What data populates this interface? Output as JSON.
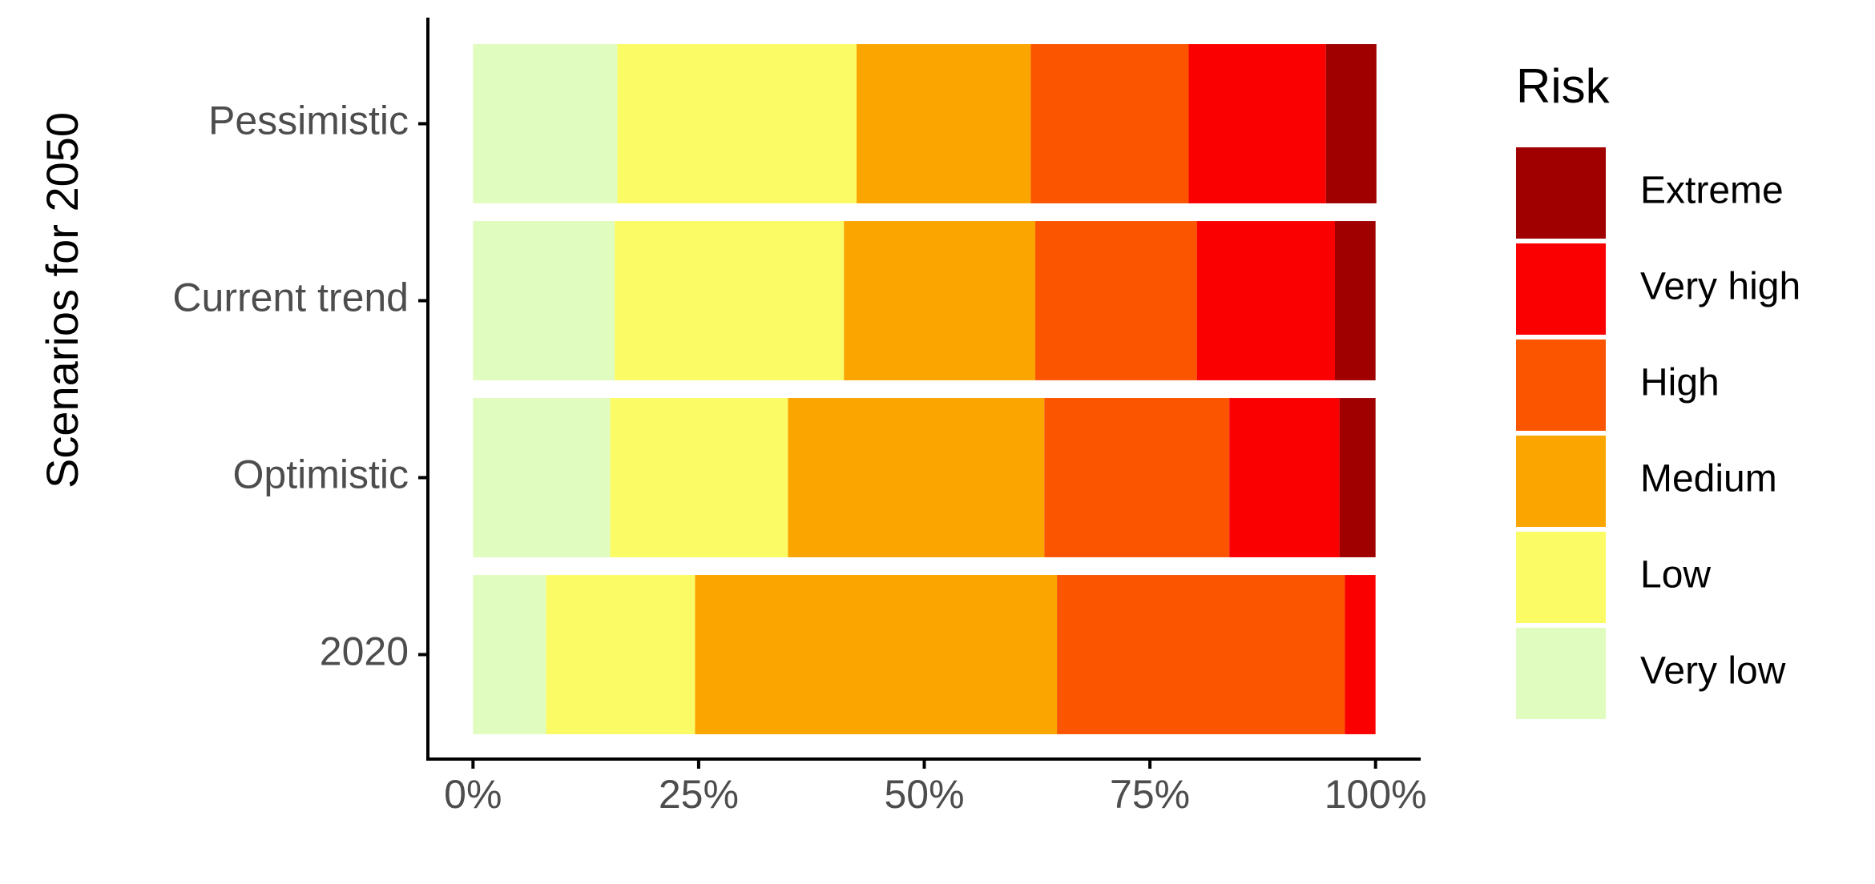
{
  "chart_data": {
    "type": "stacked-barh",
    "y_axis_title": "Scenarios for 2050",
    "legend_title": "Risk",
    "categories": [
      "Pessimistic",
      "Current trend",
      "Optimistic",
      "2020"
    ],
    "series": [
      {
        "name": "Very low",
        "color": "#e0fcbf",
        "values": [
          16.0,
          15.7,
          15.2,
          8.1
        ]
      },
      {
        "name": "Low",
        "color": "#fbfb66",
        "values": [
          26.5,
          25.4,
          19.7,
          16.5
        ]
      },
      {
        "name": "Medium",
        "color": "#fba500",
        "values": [
          19.3,
          21.2,
          28.4,
          40.1
        ]
      },
      {
        "name": "High",
        "color": "#fb5500",
        "values": [
          17.5,
          17.9,
          20.5,
          31.9
        ]
      },
      {
        "name": "Very high",
        "color": "#fb0000",
        "values": [
          15.2,
          15.3,
          12.2,
          3.4
        ]
      },
      {
        "name": "Extreme",
        "color": "#a00000",
        "values": [
          5.6,
          4.5,
          4.0,
          0
        ]
      }
    ],
    "xlim": [
      -5,
      105
    ],
    "xticks": [
      {
        "value": 0,
        "label": "0%"
      },
      {
        "value": 25,
        "label": "25%"
      },
      {
        "value": 50,
        "label": "50%"
      },
      {
        "value": 75,
        "label": "75%"
      },
      {
        "value": 100,
        "label": "100%"
      }
    ],
    "legend_position": "right"
  }
}
